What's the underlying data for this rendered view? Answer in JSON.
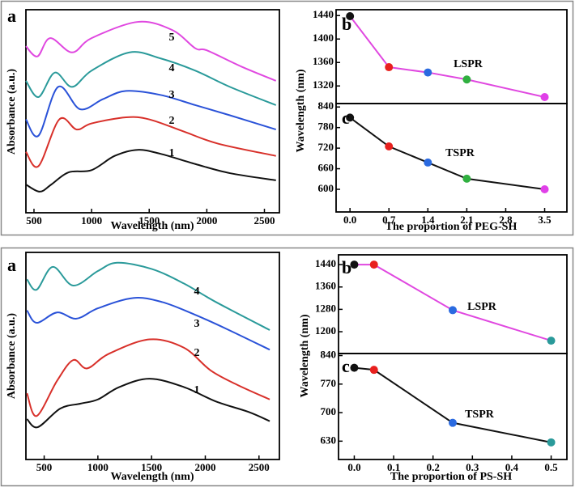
{
  "chart_data": [
    {
      "type": "line",
      "panel": "a",
      "xlabel": "Wavelength (nm)",
      "ylabel": "Absorbance (a.u.)",
      "xlim": [
        430,
        2630
      ],
      "xticks": [
        500,
        1000,
        1500,
        2000,
        2500
      ],
      "ylim": [
        0,
        10
      ],
      "series": [
        {
          "name": "1",
          "color": "#111111",
          "x": [
            430,
            550,
            650,
            800,
            1000,
            1200,
            1400,
            1600,
            1900,
            2200,
            2600
          ],
          "values": [
            1.39,
            1.04,
            1.39,
            1.99,
            2.1,
            2.8,
            3.1,
            2.9,
            2.4,
            1.95,
            1.6
          ]
        },
        {
          "name": "2",
          "color": "#d8302a",
          "x": [
            430,
            540,
            720,
            870,
            1000,
            1300,
            1500,
            1800,
            2100,
            2600
          ],
          "values": [
            3.0,
            2.3,
            4.6,
            4.1,
            4.4,
            4.7,
            4.6,
            4.0,
            3.4,
            2.8
          ]
        },
        {
          "name": "3",
          "color": "#2a52d8",
          "x": [
            430,
            540,
            710,
            900,
            1100,
            1300,
            1600,
            1900,
            2200,
            2600
          ],
          "values": [
            4.6,
            3.8,
            6.2,
            5.1,
            5.6,
            6.0,
            5.8,
            5.3,
            4.8,
            4.1
          ]
        },
        {
          "name": "4",
          "color": "#2a9a9a",
          "x": [
            430,
            540,
            680,
            830,
            1000,
            1330,
            1600,
            1900,
            2200,
            2600
          ],
          "values": [
            6.5,
            5.7,
            6.9,
            6.2,
            7.0,
            7.9,
            7.6,
            7.0,
            6.2,
            5.3
          ]
        },
        {
          "name": "5",
          "color": "#e048e0",
          "x": [
            430,
            530,
            640,
            830,
            1000,
            1400,
            1700,
            1900,
            2000,
            2300,
            2600
          ],
          "values": [
            8.2,
            7.7,
            8.6,
            7.9,
            8.6,
            9.4,
            9.0,
            8.1,
            8.0,
            7.2,
            6.5
          ]
        }
      ]
    },
    {
      "type": "line",
      "panel": "b",
      "ylabel": "Wavelength (nm)",
      "x": [
        0.0,
        0.7,
        1.4,
        2.1,
        3.5
      ],
      "xlim": [
        -0.25,
        3.9
      ],
      "ylim": [
        1290,
        1450
      ],
      "yticks": [
        1320,
        1360,
        1400,
        1440
      ],
      "series": [
        {
          "name": "LSPR",
          "color": "#e048e0",
          "marker_colors": [
            "#111111",
            "#e8201e",
            "#2a6ae0",
            "#30b040",
            "#e040e8"
          ],
          "values": [
            1439,
            1352,
            1343,
            1331,
            1301
          ]
        }
      ]
    },
    {
      "type": "line",
      "panel": "c",
      "xlabel": "The proportion of PEG-SH",
      "x": [
        0.0,
        0.7,
        1.4,
        2.1,
        3.5
      ],
      "xlim": [
        -0.25,
        3.9
      ],
      "xticks": [
        {
          "value": 0,
          "label": "0.0"
        },
        0.7,
        1.4,
        2.1,
        2.8,
        3.5
      ],
      "ylim": [
        534,
        850
      ],
      "yticks": [
        600,
        660,
        720,
        780,
        840
      ],
      "series": [
        {
          "name": "TSPR",
          "color": "#111111",
          "marker_colors": [
            "#111111",
            "#e8201e",
            "#2a6ae0",
            "#30b040",
            "#e040e8"
          ],
          "values": [
            809,
            725,
            678,
            631,
            600
          ]
        }
      ]
    },
    {
      "type": "line",
      "panel": "a",
      "xlabel": "Wavelength (nm)",
      "ylabel": "Absorbance (a.u.)",
      "xlim": [
        330,
        2690
      ],
      "xticks": [
        500,
        1000,
        1500,
        2000,
        2500
      ],
      "ylim": [
        0,
        10
      ],
      "series": [
        {
          "name": "1",
          "color": "#111111",
          "x": [
            340,
            440,
            650,
            840,
            1000,
            1200,
            1480,
            1800,
            2100,
            2400,
            2600
          ],
          "values": [
            1.95,
            1.56,
            2.46,
            2.7,
            2.9,
            3.5,
            3.9,
            3.5,
            2.8,
            2.3,
            1.85
          ]
        },
        {
          "name": "2",
          "color": "#d8302a",
          "x": [
            340,
            430,
            620,
            770,
            900,
            1100,
            1480,
            1800,
            2050,
            2300,
            2600
          ],
          "values": [
            3.2,
            2.1,
            3.8,
            4.8,
            4.4,
            5.1,
            5.8,
            5.4,
            4.3,
            3.6,
            2.9
          ]
        },
        {
          "name": "3",
          "color": "#2a52d8",
          "x": [
            340,
            430,
            620,
            800,
            1000,
            1330,
            1600,
            1900,
            2200,
            2600
          ],
          "values": [
            7.2,
            6.6,
            7.1,
            6.8,
            7.3,
            7.8,
            7.6,
            7.0,
            6.3,
            5.3
          ]
        },
        {
          "name": "4",
          "color": "#2a9a9a",
          "x": [
            340,
            430,
            580,
            770,
            1000,
            1180,
            1500,
            1800,
            2100,
            2600
          ],
          "values": [
            8.7,
            8.2,
            9.3,
            8.4,
            9.1,
            9.5,
            9.2,
            8.5,
            7.6,
            6.25
          ]
        }
      ]
    },
    {
      "type": "line",
      "panel": "b",
      "ylabel": "Wavelength (nm)",
      "x": [
        0.0,
        0.05,
        0.25,
        0.5
      ],
      "xlim": [
        -0.04,
        0.54
      ],
      "ylim": [
        1122,
        1475
      ],
      "yticks": [
        1200,
        1280,
        1360,
        1440
      ],
      "series": [
        {
          "name": "LSPR",
          "color": "#e048e0",
          "marker_colors": [
            "#111111",
            "#e8201e",
            "#2a6ae0",
            "#2a9a9a"
          ],
          "values": [
            1440,
            1440,
            1277,
            1168
          ]
        }
      ]
    },
    {
      "type": "line",
      "panel": "c",
      "xlabel": "The proportion of PS-SH",
      "x": [
        0.0,
        0.05,
        0.25,
        0.5
      ],
      "xlim": [
        -0.04,
        0.54
      ],
      "xticks": [
        {
          "value": 0,
          "label": "0.0"
        },
        0.1,
        0.2,
        0.3,
        0.4,
        0.5
      ],
      "ylim": [
        585,
        845
      ],
      "yticks": [
        630,
        700,
        770,
        840
      ],
      "series": [
        {
          "name": "TSPR",
          "color": "#111111",
          "marker_colors": [
            "#111111",
            "#e8201e",
            "#2a6ae0",
            "#2a9a9a"
          ],
          "values": [
            810,
            805,
            675,
            627
          ]
        }
      ]
    }
  ]
}
